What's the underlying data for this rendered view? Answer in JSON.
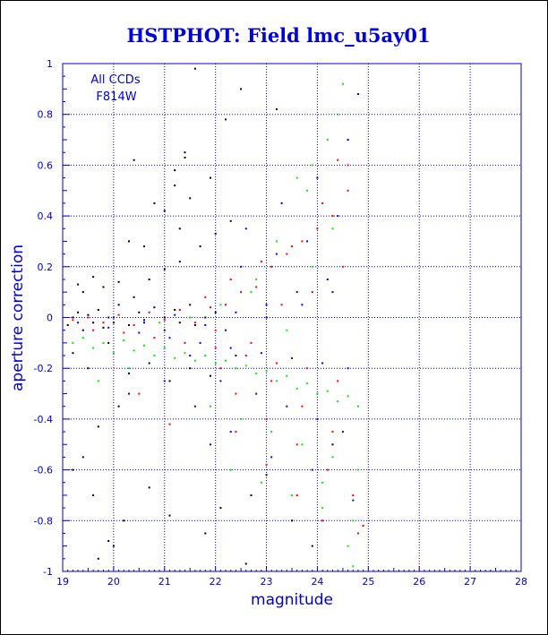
{
  "chart_data": {
    "type": "scatter",
    "title": "HSTPHOT: Field lmc_u5ay01",
    "xlabel": "magnitude",
    "ylabel": "aperture correction",
    "xlim": [
      19,
      28
    ],
    "ylim": [
      -1,
      1
    ],
    "xticks": [
      "19",
      "20",
      "21",
      "22",
      "23",
      "24",
      "25",
      "26",
      "27",
      "28"
    ],
    "yticks": [
      "-1",
      "-0.8",
      "-0.6",
      "-0.4",
      "-0.2",
      "0",
      "0.2",
      "0.4",
      "0.6",
      "0.8",
      "1"
    ],
    "grid": true,
    "annotations": [
      "All CCDs",
      "F814W"
    ],
    "colors": {
      "frame": "#0000cc",
      "grid": "#0000cc",
      "title": "#0000dd",
      "black": "#000000",
      "red": "#ff0000",
      "blue": "#0000ff",
      "green": "#00ee00"
    },
    "series": [
      {
        "color": "#000000",
        "x": [
          19.1,
          19.2,
          19.3,
          19.4,
          19.5,
          19.6,
          19.7,
          19.8,
          19.9,
          20.0,
          20.1,
          20.3,
          20.5,
          20.6,
          20.8,
          21.0,
          21.0,
          21.2,
          21.3,
          21.5,
          21.6,
          21.8,
          22.0,
          19.3,
          19.4,
          19.6,
          19.8,
          20.1,
          20.4,
          20.7,
          21.0,
          21.3,
          21.7,
          22.0,
          22.3,
          19.2,
          19.5,
          19.9,
          20.3,
          20.7,
          21.1,
          21.5,
          21.9,
          22.4,
          21.6,
          22.5,
          21.4,
          21.9,
          21.2,
          20.8,
          20.3,
          20.6,
          21.0,
          21.3,
          20.1,
          19.7,
          19.4,
          19.2,
          21.8,
          22.1,
          22.7,
          23.0,
          23.5,
          23.9,
          24.3,
          22.6,
          21.1,
          20.7,
          20.2,
          19.9,
          19.7,
          21.4,
          22.2,
          23.2,
          19.6,
          20.0,
          20.4,
          21.2,
          21.5
        ],
        "y": [
          -0.03,
          0.0,
          0.02,
          -0.05,
          0.01,
          -0.02,
          0.03,
          -0.04,
          0.0,
          -0.02,
          0.05,
          -0.03,
          0.02,
          -0.01,
          0.04,
          -0.05,
          0.0,
          0.03,
          -0.02,
          0.05,
          -0.03,
          0.0,
          0.02,
          0.13,
          0.1,
          0.16,
          0.12,
          0.14,
          0.08,
          0.15,
          0.19,
          0.22,
          0.28,
          0.33,
          0.38,
          -0.14,
          -0.2,
          -0.1,
          -0.22,
          -0.18,
          -0.25,
          -0.2,
          -0.23,
          -0.15,
          0.98,
          0.9,
          0.65,
          0.55,
          0.52,
          0.45,
          0.3,
          0.28,
          0.42,
          0.35,
          -0.35,
          -0.43,
          -0.55,
          -0.6,
          -0.85,
          -0.75,
          -0.7,
          -0.62,
          -0.8,
          -0.9,
          -0.5,
          -0.97,
          -0.78,
          -0.67,
          -0.8,
          -0.88,
          -0.95,
          0.63,
          0.78,
          0.82,
          -0.7,
          -0.9,
          0.62,
          0.58,
          0.47
        ]
      },
      {
        "color": "#ff0000",
        "x": [
          19.2,
          19.5,
          19.8,
          20.1,
          20.4,
          20.7,
          21.0,
          21.3,
          21.6,
          21.9,
          22.2,
          22.5,
          22.8,
          23.1,
          23.4,
          23.7,
          24.0,
          24.3,
          24.6,
          19.6,
          20.2,
          20.8,
          21.4,
          22.0,
          22.6,
          23.2,
          23.8,
          24.4,
          21.8,
          22.3,
          22.9,
          23.5,
          24.1,
          24.6,
          22.4,
          23.0,
          23.6,
          24.2,
          24.7,
          22.1,
          22.7,
          23.3,
          23.9,
          24.5,
          21.5,
          22.0,
          23.1,
          23.7,
          24.3,
          24.8,
          20.5,
          21.1,
          22.4,
          23.0,
          23.6,
          24.1,
          24.6,
          24.4,
          24.9
        ],
        "y": [
          -0.01,
          0.0,
          -0.02,
          0.01,
          -0.03,
          0.02,
          -0.01,
          0.03,
          -0.02,
          0.04,
          0.05,
          0.1,
          0.12,
          0.2,
          0.25,
          0.3,
          0.35,
          0.4,
          0.5,
          -0.05,
          -0.06,
          -0.08,
          -0.1,
          -0.12,
          -0.15,
          -0.18,
          -0.2,
          -0.25,
          0.08,
          0.15,
          0.22,
          0.28,
          0.45,
          0.6,
          -0.3,
          -0.4,
          -0.5,
          -0.6,
          -0.7,
          -0.2,
          -0.1,
          0.05,
          0.1,
          0.2,
          0.0,
          -0.05,
          -0.25,
          -0.35,
          -0.45,
          -0.85,
          -0.3,
          -0.42,
          -0.45,
          -0.58,
          -0.7,
          -0.8,
          0.7,
          0.62,
          -0.82
        ]
      },
      {
        "color": "#0000ff",
        "x": [
          19.3,
          19.9,
          20.5,
          21.1,
          21.7,
          22.3,
          22.9,
          23.5,
          24.1,
          24.6,
          20.0,
          20.6,
          21.2,
          21.8,
          22.4,
          23.0,
          23.6,
          24.2,
          22.1,
          22.8,
          23.4,
          24.0,
          24.5,
          22.5,
          23.2,
          23.8,
          24.4,
          21.5,
          22.2,
          23.0,
          23.7,
          24.3,
          20.3,
          21.0,
          21.6,
          22.3,
          23.1,
          23.9,
          24.7,
          22.6,
          23.3,
          24.0,
          24.6,
          21.9,
          24.8
        ],
        "y": [
          -0.02,
          -0.04,
          -0.06,
          -0.08,
          -0.1,
          -0.12,
          -0.14,
          -0.16,
          -0.18,
          -0.2,
          0.0,
          -0.02,
          0.01,
          -0.03,
          0.02,
          0.05,
          0.1,
          0.15,
          -0.25,
          -0.3,
          -0.35,
          -0.4,
          -0.45,
          0.2,
          0.25,
          0.3,
          0.4,
          -0.15,
          -0.05,
          0.0,
          0.05,
          0.1,
          -0.3,
          -0.25,
          -0.35,
          -0.45,
          -0.55,
          -0.6,
          -0.72,
          0.35,
          0.45,
          0.55,
          0.7,
          -0.5,
          0.88
        ]
      },
      {
        "color": "#00ee00",
        "x": [
          19.2,
          19.6,
          20.0,
          20.4,
          20.8,
          21.2,
          21.6,
          22.0,
          22.4,
          22.8,
          23.2,
          23.6,
          24.0,
          24.4,
          24.8,
          19.4,
          19.8,
          20.2,
          20.6,
          21.0,
          21.4,
          21.8,
          22.2,
          22.6,
          23.0,
          23.4,
          23.8,
          24.2,
          24.6,
          21.9,
          22.5,
          23.1,
          23.7,
          24.3,
          24.8,
          22.3,
          22.9,
          23.5,
          24.1,
          24.7,
          23.2,
          23.8,
          24.4,
          24.5,
          24.2,
          23.9,
          23.6,
          22.7,
          22.1,
          21.5,
          20.9,
          20.3,
          19.7,
          24.6,
          24.1,
          23.4,
          22.8,
          23.9,
          24.3,
          24.7
        ],
        "y": [
          -0.1,
          -0.12,
          -0.14,
          -0.13,
          -0.15,
          -0.16,
          -0.17,
          -0.18,
          -0.2,
          -0.22,
          -0.25,
          -0.28,
          -0.3,
          -0.33,
          -0.35,
          -0.08,
          -0.1,
          -0.09,
          -0.11,
          -0.12,
          -0.14,
          -0.15,
          -0.17,
          -0.19,
          -0.21,
          -0.23,
          -0.26,
          -0.29,
          -0.31,
          -0.35,
          -0.4,
          -0.45,
          -0.5,
          -0.55,
          -0.6,
          -0.6,
          -0.65,
          -0.7,
          -0.75,
          -0.8,
          0.3,
          0.5,
          0.8,
          0.92,
          0.7,
          0.6,
          0.55,
          0.1,
          0.05,
          0.0,
          -0.02,
          -0.2,
          -0.25,
          -0.9,
          -0.65,
          -0.05,
          0.15,
          0.2,
          0.35,
          -0.98
        ]
      }
    ]
  }
}
